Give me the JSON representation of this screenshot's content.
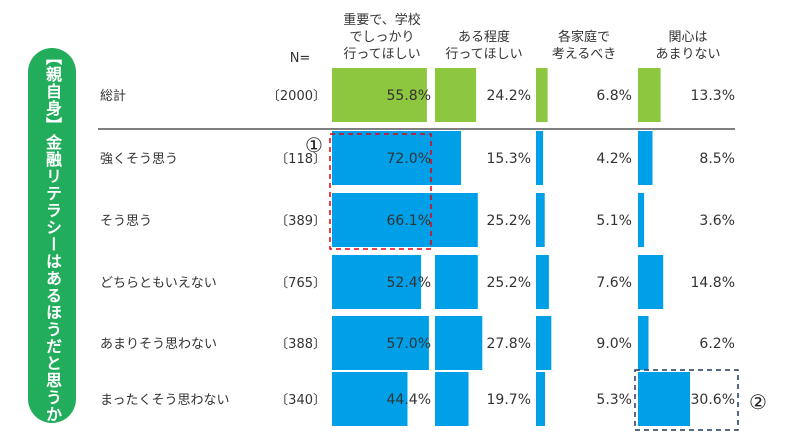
{
  "side_label": {
    "line1": "【親自身】金融リテラシーは",
    "line2": "あるほうだと思うか"
  },
  "colors": {
    "total_bar": "#8dc63f",
    "group_bar": "#00a0e9",
    "side_label_bg": "#22ad5c",
    "highlight_1": "#e60012",
    "highlight_2": "#1f3864"
  },
  "chart_data": {
    "type": "bar",
    "layout": "horizontal stacked cross-tab (100% per row)",
    "n_header": "N=",
    "columns": [
      {
        "key": "c1",
        "lines": [
          "重要で、学校",
          "でしっかり",
          "行ってほしい"
        ]
      },
      {
        "key": "c2",
        "lines": [
          "ある程度",
          "行ってほしい"
        ]
      },
      {
        "key": "c3",
        "lines": [
          "各家庭で",
          "考えるべき"
        ]
      },
      {
        "key": "c4",
        "lines": [
          "関心は",
          "あまりない"
        ]
      }
    ],
    "rows": [
      {
        "label": "総計",
        "n": "〔2000〕",
        "values": [
          55.8,
          24.2,
          6.8,
          13.3
        ],
        "labels": [
          "55.8%",
          "24.2%",
          "6.8%",
          "13.3%"
        ],
        "total": true
      },
      {
        "label": "強くそう思う",
        "n": "〔118〕",
        "values": [
          72.0,
          15.3,
          4.2,
          8.5
        ],
        "labels": [
          "72.0%",
          "15.3%",
          "4.2%",
          "8.5%"
        ]
      },
      {
        "label": "そう思う",
        "n": "〔389〕",
        "values": [
          66.1,
          25.2,
          5.1,
          3.6
        ],
        "labels": [
          "66.1%",
          "25.2%",
          "5.1%",
          "3.6%"
        ]
      },
      {
        "label": "どちらともいえない",
        "n": "〔765〕",
        "values": [
          52.4,
          25.2,
          7.6,
          14.8
        ],
        "labels": [
          "52.4%",
          "25.2%",
          "7.6%",
          "14.8%"
        ]
      },
      {
        "label": "あまりそう思わない",
        "n": "〔388〕",
        "values": [
          57.0,
          27.8,
          9.0,
          6.2
        ],
        "labels": [
          "57.0%",
          "27.8%",
          "9.0%",
          "6.2%"
        ]
      },
      {
        "label": "まったくそう思わない",
        "n": "〔340〕",
        "values": [
          44.4,
          19.7,
          5.3,
          30.6
        ],
        "labels": [
          "44.4%",
          "19.7%",
          "5.3%",
          "30.6%"
        ]
      }
    ],
    "annotations": [
      {
        "mark": "①",
        "column": "c1",
        "rows": [
          "強くそう思う",
          "そう思う"
        ],
        "style": "red dashed box"
      },
      {
        "mark": "②",
        "column": "c4",
        "rows": [
          "まったくそう思わない"
        ],
        "style": "navy dashed box"
      }
    ],
    "xlim": [
      0,
      100
    ]
  }
}
